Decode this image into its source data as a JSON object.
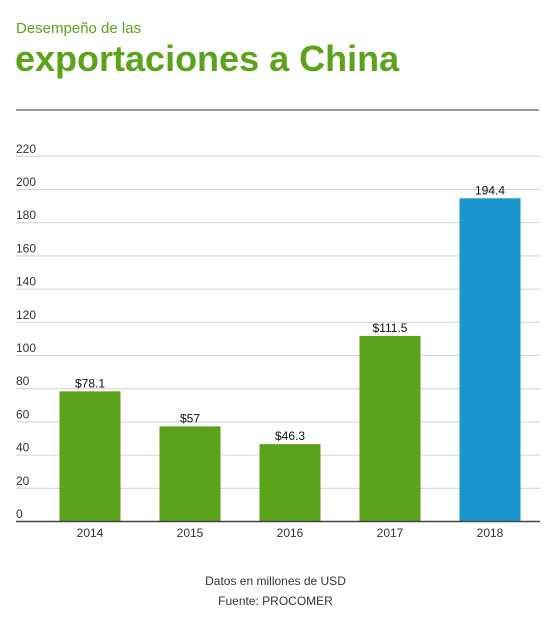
{
  "header": {
    "subtitle": "Desempeño de las",
    "title": "exportaciones a China"
  },
  "colors": {
    "green": "#5ba31a",
    "blue": "#1b96cc",
    "grid": "#d0d0d0",
    "axis": "#333333",
    "title": "#5ba31a"
  },
  "chart_data": {
    "type": "bar",
    "categories": [
      "2014",
      "2015",
      "2016",
      "2017",
      "2018"
    ],
    "values": [
      78.1,
      57,
      46.3,
      111.5,
      194.4
    ],
    "data_labels": [
      "$78.1",
      "$57",
      "$46.3",
      "$111.5",
      "194.4"
    ],
    "bar_colors": [
      "#5ba31a",
      "#5ba31a",
      "#5ba31a",
      "#5ba31a",
      "#1b96cc"
    ],
    "y_ticks": [
      0,
      20,
      40,
      60,
      80,
      100,
      120,
      140,
      160,
      180,
      200,
      220
    ],
    "ylim": [
      0,
      220
    ],
    "grid": true,
    "xlabel": "",
    "ylabel": ""
  },
  "footer": {
    "unit_note": "Datos en millones de USD",
    "source": "Fuente: PROCOMER"
  }
}
